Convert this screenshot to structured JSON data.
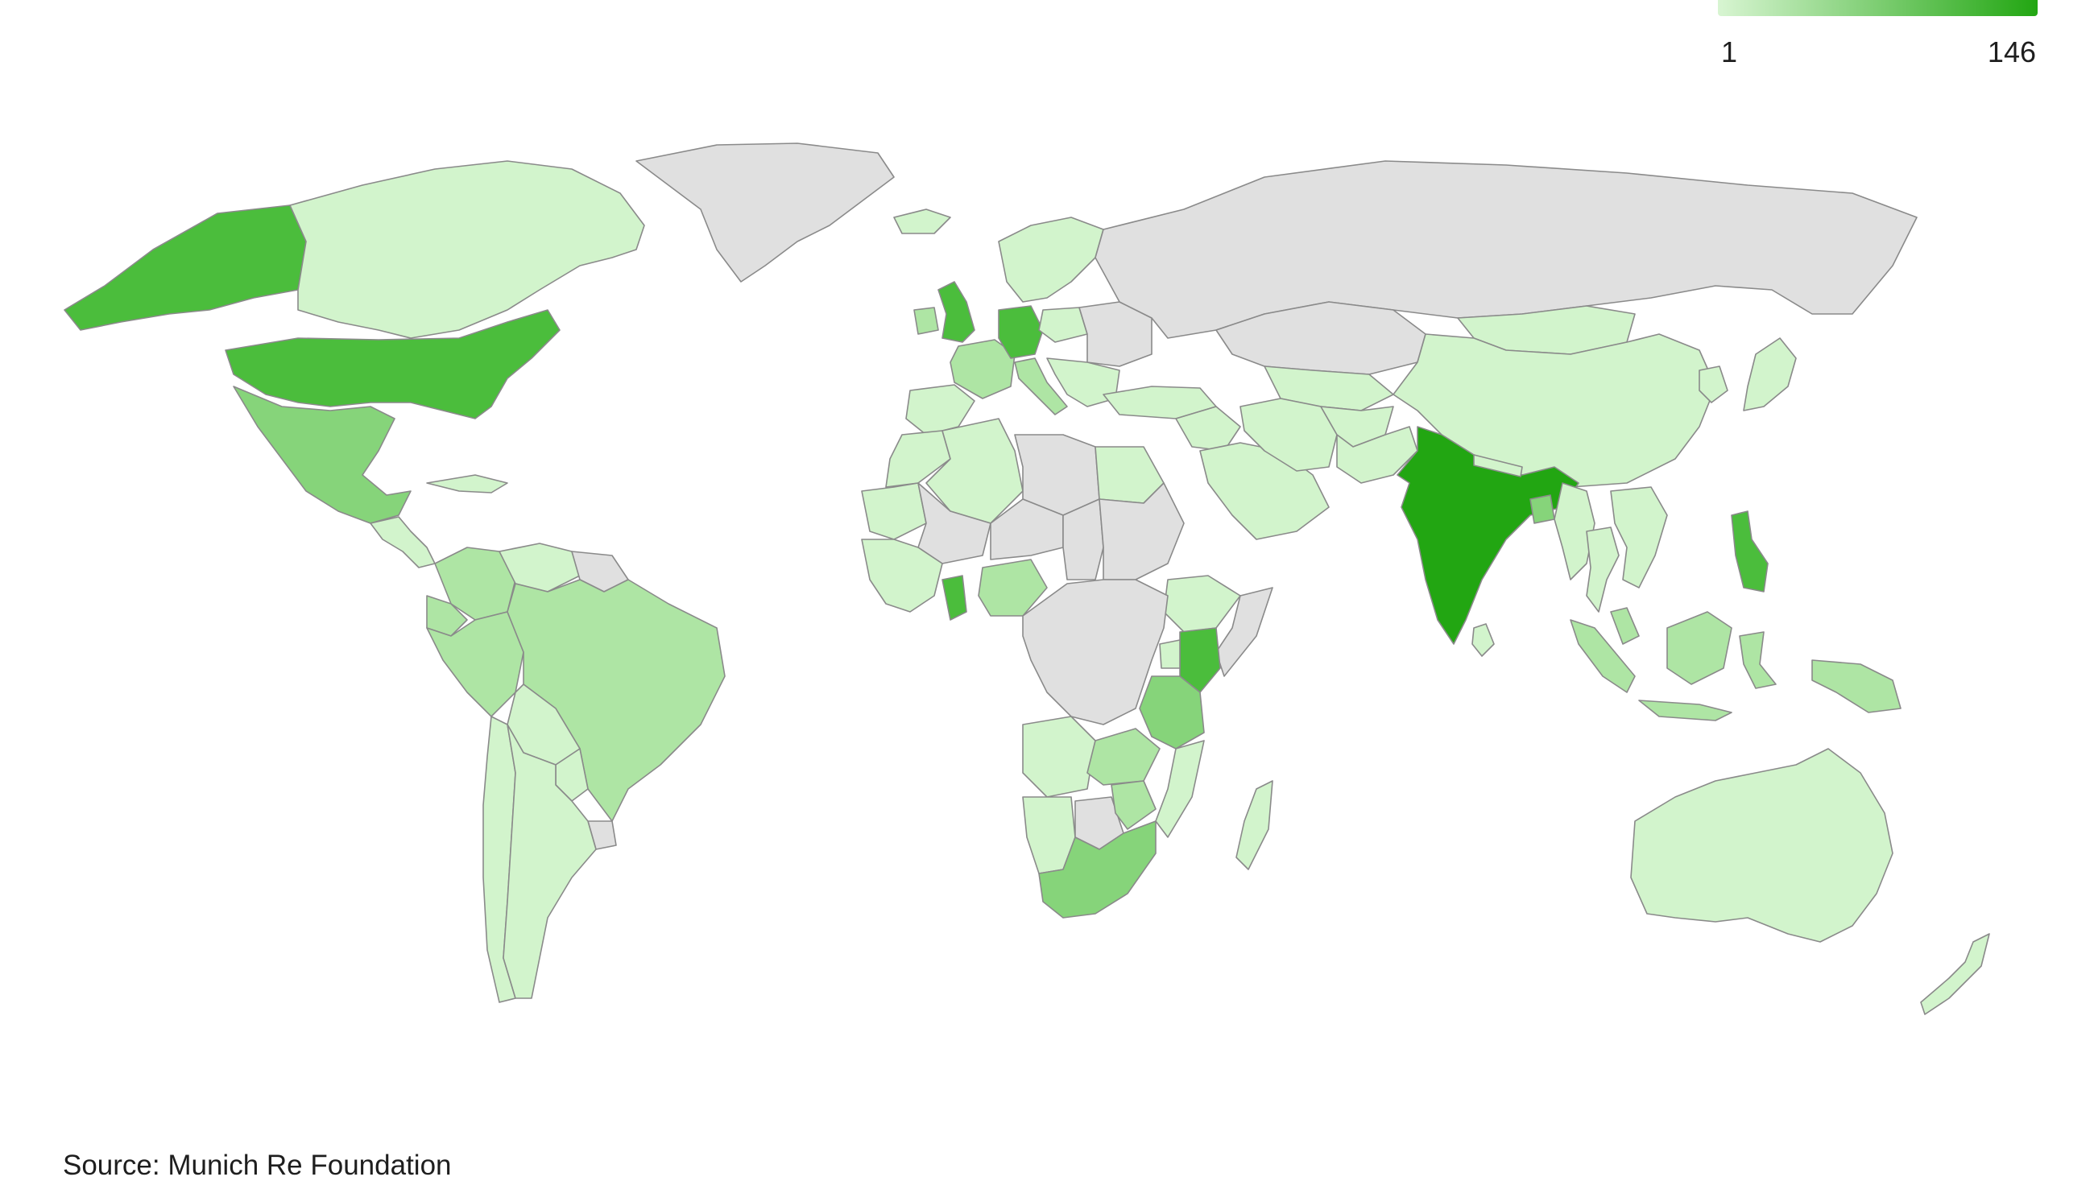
{
  "legend": {
    "min_label": "1",
    "max_label": "146",
    "color_low": "#d8f5d2",
    "color_high": "#22a612"
  },
  "source": "Source: Munich Re Foundation",
  "colors": {
    "no_data": "#e0e0e0",
    "level_1": "#d2f4cc",
    "level_2": "#aee5a4",
    "level_3": "#86d47a",
    "level_4": "#4bbd3c",
    "level_5": "#22a612"
  },
  "regions": [
    {
      "name": "Alaska",
      "level": "level_4"
    },
    {
      "name": "Canada",
      "level": "level_1"
    },
    {
      "name": "Greenland",
      "level": "no_data"
    },
    {
      "name": "United States",
      "level": "level_4"
    },
    {
      "name": "Mexico",
      "level": "level_3"
    },
    {
      "name": "Central America",
      "level": "level_1"
    },
    {
      "name": "Caribbean",
      "level": "level_1"
    },
    {
      "name": "Colombia",
      "level": "level_2"
    },
    {
      "name": "Venezuela",
      "level": "level_1"
    },
    {
      "name": "Guianas",
      "level": "no_data"
    },
    {
      "name": "Ecuador",
      "level": "level_2"
    },
    {
      "name": "Peru",
      "level": "level_2"
    },
    {
      "name": "Brazil",
      "level": "level_2"
    },
    {
      "name": "Bolivia",
      "level": "level_1"
    },
    {
      "name": "Paraguay",
      "level": "level_1"
    },
    {
      "name": "Uruguay",
      "level": "no_data"
    },
    {
      "name": "Chile",
      "level": "level_1"
    },
    {
      "name": "Argentina",
      "level": "level_1"
    },
    {
      "name": "Iceland",
      "level": "level_1"
    },
    {
      "name": "United Kingdom",
      "level": "level_4"
    },
    {
      "name": "Ireland",
      "level": "level_2"
    },
    {
      "name": "France",
      "level": "level_2"
    },
    {
      "name": "Iberia",
      "level": "level_1"
    },
    {
      "name": "Germany",
      "level": "level_4"
    },
    {
      "name": "Scandinavia",
      "level": "level_1"
    },
    {
      "name": "Poland",
      "level": "level_1"
    },
    {
      "name": "Eastern Europe",
      "level": "no_data"
    },
    {
      "name": "Italy",
      "level": "level_2"
    },
    {
      "name": "Balkans",
      "level": "level_1"
    },
    {
      "name": "Turkey",
      "level": "level_1"
    },
    {
      "name": "Russia",
      "level": "no_data"
    },
    {
      "name": "Kazakhstan",
      "level": "no_data"
    },
    {
      "name": "Central Asia",
      "level": "level_1"
    },
    {
      "name": "Mongolia",
      "level": "level_1"
    },
    {
      "name": "China",
      "level": "level_1"
    },
    {
      "name": "Korea",
      "level": "level_1"
    },
    {
      "name": "Japan",
      "level": "level_1"
    },
    {
      "name": "Middle East",
      "level": "level_1"
    },
    {
      "name": "Saudi Arabia",
      "level": "level_1"
    },
    {
      "name": "Iran",
      "level": "level_1"
    },
    {
      "name": "Afghanistan",
      "level": "level_1"
    },
    {
      "name": "Pakistan",
      "level": "level_1"
    },
    {
      "name": "India",
      "level": "level_5"
    },
    {
      "name": "Sri Lanka",
      "level": "level_1"
    },
    {
      "name": "Nepal",
      "level": "level_1"
    },
    {
      "name": "Bangladesh",
      "level": "level_3"
    },
    {
      "name": "Myanmar",
      "level": "level_1"
    },
    {
      "name": "Thailand",
      "level": "level_1"
    },
    {
      "name": "Indochina",
      "level": "level_1"
    },
    {
      "name": "Philippines",
      "level": "level_4"
    },
    {
      "name": "Malaysia",
      "level": "level_2"
    },
    {
      "name": "Sumatra",
      "level": "level_2"
    },
    {
      "name": "Java",
      "level": "level_2"
    },
    {
      "name": "Borneo",
      "level": "level_2"
    },
    {
      "name": "Sulawesi",
      "level": "level_2"
    },
    {
      "name": "New Guinea",
      "level": "level_2"
    },
    {
      "name": "Australia",
      "level": "level_1"
    },
    {
      "name": "New Zealand",
      "level": "level_1"
    },
    {
      "name": "Morocco",
      "level": "level_1"
    },
    {
      "name": "Algeria",
      "level": "level_1"
    },
    {
      "name": "Libya",
      "level": "no_data"
    },
    {
      "name": "Egypt",
      "level": "level_1"
    },
    {
      "name": "Mauritania",
      "level": "level_1"
    },
    {
      "name": "Mali",
      "level": "no_data"
    },
    {
      "name": "Niger",
      "level": "no_data"
    },
    {
      "name": "Chad",
      "level": "no_data"
    },
    {
      "name": "Sudan",
      "level": "no_data"
    },
    {
      "name": "West Africa",
      "level": "level_1"
    },
    {
      "name": "Ghana",
      "level": "level_4"
    },
    {
      "name": "Nigeria",
      "level": "level_2"
    },
    {
      "name": "Ethiopia",
      "level": "level_1"
    },
    {
      "name": "Somalia",
      "level": "no_data"
    },
    {
      "name": "Central Africa",
      "level": "no_data"
    },
    {
      "name": "Kenya",
      "level": "level_4"
    },
    {
      "name": "Uganda",
      "level": "level_1"
    },
    {
      "name": "Tanzania",
      "level": "level_3"
    },
    {
      "name": "Angola",
      "level": "level_1"
    },
    {
      "name": "Zambia",
      "level": "level_2"
    },
    {
      "name": "Mozambique",
      "level": "level_1"
    },
    {
      "name": "Namibia",
      "level": "level_1"
    },
    {
      "name": "Botswana",
      "level": "no_data"
    },
    {
      "name": "Zimbabwe",
      "level": "level_2"
    },
    {
      "name": "South Africa",
      "level": "level_3"
    },
    {
      "name": "Madagascar",
      "level": "level_1"
    }
  ]
}
